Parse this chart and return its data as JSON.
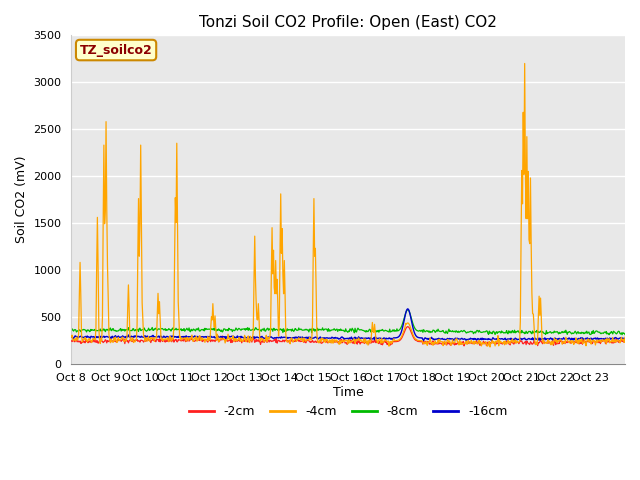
{
  "title": "Tonzi Soil CO2 Profile: Open (East) CO2",
  "ylabel": "Soil CO2 (mV)",
  "xlabel": "Time",
  "legend_label": "TZ_soilco2",
  "series_labels": [
    "-2cm",
    "-4cm",
    "-8cm",
    "-16cm"
  ],
  "series_colors": [
    "#ff2020",
    "#ffa500",
    "#00bb00",
    "#0000cc"
  ],
  "ylim": [
    0,
    3500
  ],
  "fig_bg_color": "#ffffff",
  "plot_bg_color": "#e8e8e8",
  "grid_color": "#ffffff",
  "x_tick_labels": [
    "Oct 8",
    "Oct 9",
    "Oct 10",
    "Oct 11",
    "Oct 12",
    "Oct 13",
    "Oct 14",
    "Oct 15",
    "Oct 16",
    "Oct 17",
    "Oct 18",
    "Oct 19",
    "Oct 20",
    "Oct 21",
    "Oct 22",
    "Oct 23",
    ""
  ],
  "yticks": [
    0,
    500,
    1000,
    1500,
    2000,
    2500,
    3000,
    3500
  ],
  "num_days": 16,
  "points_per_day": 48,
  "title_fontsize": 11,
  "axis_fontsize": 9,
  "tick_fontsize": 8
}
